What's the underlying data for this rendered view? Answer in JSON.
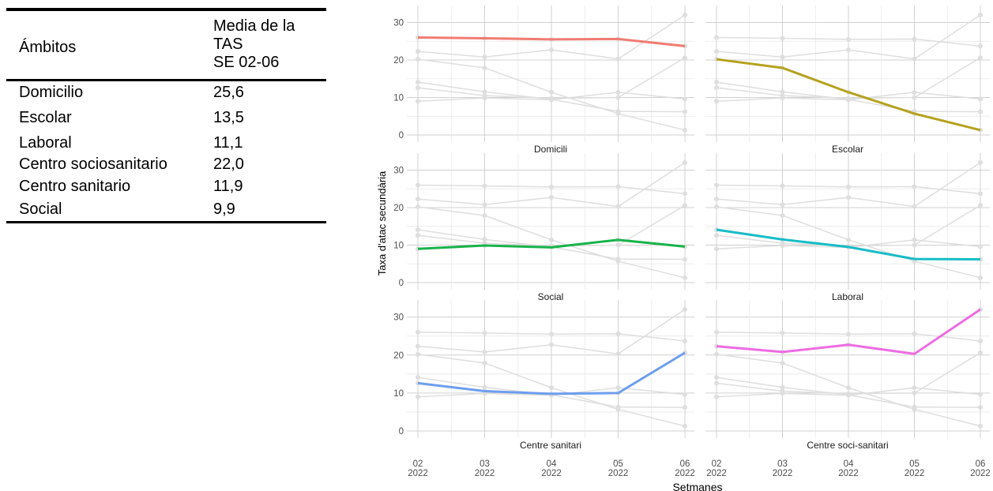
{
  "table": {
    "headers": [
      "Ámbitos",
      "Media de la TAS SE 02-06"
    ],
    "header_lines": [
      "Media de la",
      "TAS",
      "SE 02-06"
    ],
    "rows": [
      {
        "ambito": "Domicilio",
        "value": "25,6"
      },
      {
        "ambito": "Escolar",
        "value": "13,5"
      },
      {
        "ambito": "Laboral",
        "value": "11,1"
      },
      {
        "ambito": "Centro sociosanitario",
        "value": "22,0"
      },
      {
        "ambito": "Centro sanitario",
        "value": "11,9"
      },
      {
        "ambito": "Social",
        "value": "9,9"
      }
    ]
  },
  "chart_data": {
    "type": "line",
    "layout": "facet-grid 3x2, all series shown in grey in each panel with the panel's series highlighted",
    "x": [
      "02\n2022",
      "03\n2022",
      "04\n2022",
      "05\n2022",
      "06\n2022"
    ],
    "x_ticks": [
      {
        "week": "02",
        "year": "2022"
      },
      {
        "week": "03",
        "year": "2022"
      },
      {
        "week": "04",
        "year": "2022"
      },
      {
        "week": "05",
        "year": "2022"
      },
      {
        "week": "06",
        "year": "2022"
      }
    ],
    "xlabel": "Setmanes",
    "ylabel": "Taxa d'atac secundària",
    "ylim": [
      0,
      32
    ],
    "yticks": [
      0,
      10,
      20,
      30
    ],
    "grid": true,
    "background_series_color": "#dedede",
    "series": [
      {
        "name": "Domicili",
        "color": "#f07c72",
        "values": [
          26.0,
          25.8,
          25.5,
          25.6,
          23.7
        ]
      },
      {
        "name": "Escolar",
        "color": "#b5a21f",
        "values": [
          20.2,
          17.9,
          11.4,
          5.7,
          1.3
        ]
      },
      {
        "name": "Social",
        "color": "#19b34a",
        "values": [
          9.0,
          9.9,
          9.4,
          11.4,
          9.6
        ]
      },
      {
        "name": "Laboral",
        "color": "#17bcc6",
        "values": [
          14.1,
          11.5,
          9.5,
          6.3,
          6.2
        ]
      },
      {
        "name": "Centre sanitari",
        "color": "#6d9eee",
        "values": [
          12.6,
          10.5,
          9.8,
          10.0,
          20.6
        ]
      },
      {
        "name": "Centre soci-sanitari",
        "color": "#ee6ce2",
        "values": [
          22.3,
          20.8,
          22.7,
          20.3,
          32.0
        ]
      }
    ]
  }
}
